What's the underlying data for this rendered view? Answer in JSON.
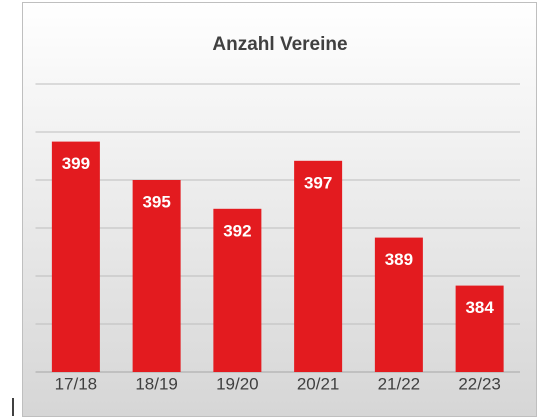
{
  "chart_data": {
    "type": "bar",
    "title": "Anzahl Vereine",
    "categories": [
      "17/18",
      "18/19",
      "19/20",
      "20/21",
      "21/22",
      "22/23"
    ],
    "values": [
      399,
      395,
      392,
      397,
      389,
      384
    ],
    "color": "#e31b1f",
    "ylim": [
      375,
      405
    ],
    "yticks": [
      375,
      380,
      385,
      390,
      395,
      400,
      405
    ],
    "grid": true
  }
}
